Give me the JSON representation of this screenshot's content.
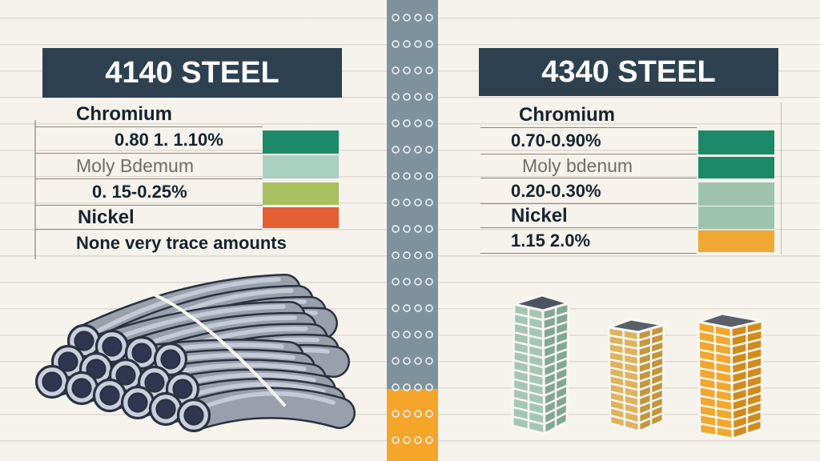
{
  "left_panel": {
    "title": "4140 STEEL",
    "rows": [
      {
        "text": "Chromium",
        "style": "element"
      },
      {
        "text": "0.80 1. 1.10%",
        "style": "value",
        "swatch": "#1c8a68"
      },
      {
        "text": "Moly Bdemum",
        "style": "element-gray",
        "swatch": "#abcfc0"
      },
      {
        "text": "0. 15-0.25%",
        "style": "value",
        "swatch": "#a9c161"
      },
      {
        "text": "Nickel",
        "style": "element",
        "swatch": "#e45f34"
      },
      {
        "text": "None very trace amounts",
        "style": "note"
      }
    ]
  },
  "right_panel": {
    "title": "4340 STEEL",
    "rows": [
      {
        "text": "Chromium",
        "style": "element"
      },
      {
        "text": "0.70-0.90%",
        "style": "value",
        "swatch": "#1c8a68"
      },
      {
        "text": "Moly bdenum",
        "style": "element-gray",
        "swatch": "#1c8a68"
      },
      {
        "text": "0.20-0.30%",
        "style": "value",
        "swatch": "#9dc3ae"
      },
      {
        "text": "Nickel",
        "style": "element",
        "swatch": "#9dc3ae"
      },
      {
        "text": "1.15 2.0%",
        "style": "value",
        "swatch": "#f0a832"
      }
    ]
  },
  "divider": {
    "top_color": "#7e929e",
    "bottom_color": "#f5a52a",
    "dot_color": "#e7edf0"
  },
  "illustrations": {
    "left": "steel-pipes-bundle",
    "right": "stacked-brick-towers",
    "pipes": {
      "body": "#99a0ab",
      "outline": "#2a3140",
      "highlight": "#c8ced9",
      "rim": "#c9cfdb",
      "bore": "#2f3650",
      "strap": "#f7f5ef"
    },
    "towers": [
      {
        "name": "sage-tower",
        "front": "#a6c6b4",
        "side": "#83a797",
        "top": "#4a5560"
      },
      {
        "name": "gold-tower",
        "front": "#dfb35f",
        "side": "#c3973e",
        "top": "#575f67"
      },
      {
        "name": "amber-tower",
        "front": "#f3a72d",
        "side": "#d18c1e",
        "top": "#5a6069"
      }
    ]
  },
  "chart_data": {
    "type": "table",
    "title": "4140 Steel vs 4340 Steel alloy composition",
    "columns": [
      "4140 STEEL",
      "4340 STEEL"
    ],
    "rows": [
      {
        "element": "Chromium",
        "4140": "0.80 1. 1.10%",
        "4340": "0.70-0.90%"
      },
      {
        "element": "Molybdenum",
        "4140": "0. 15-0.25%",
        "4340": "0.20-0.30%"
      },
      {
        "element": "Nickel",
        "4140": "None very trace amounts",
        "4340": "1.15 2.0%"
      }
    ]
  }
}
